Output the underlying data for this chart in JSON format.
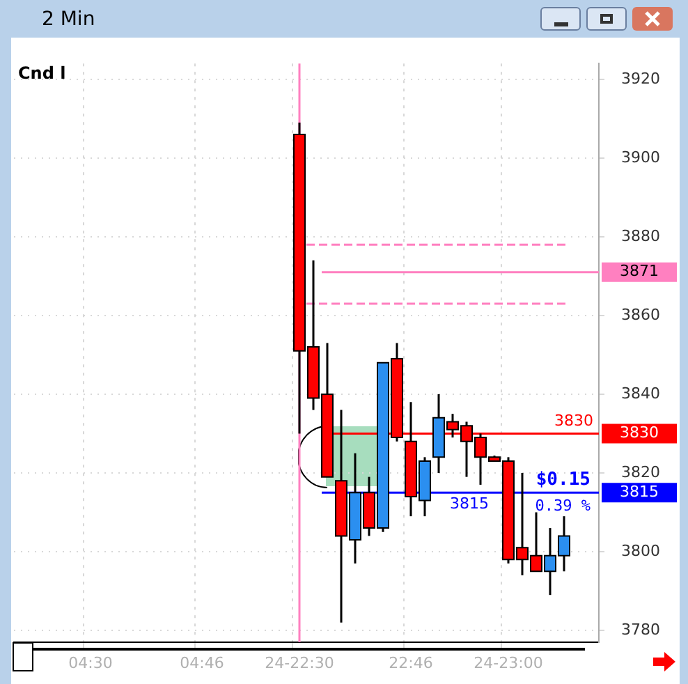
{
  "chart_data": {
    "type": "candlestick",
    "title": "2 Min",
    "categories": [
      null,
      null,
      null,
      null,
      null,
      "04:30",
      null,
      null,
      null,
      null,
      null,
      null,
      null,
      "04:46",
      null,
      null,
      null,
      null,
      null,
      null,
      "24-22:30",
      null,
      null,
      null,
      null,
      null,
      null,
      null,
      "22:46",
      null,
      null,
      null,
      null,
      null,
      null,
      "24-23:00",
      null,
      null,
      null,
      null,
      null,
      null
    ],
    "ohlc": [
      null,
      null,
      null,
      null,
      null,
      null,
      null,
      null,
      null,
      null,
      null,
      null,
      null,
      null,
      null,
      null,
      null,
      null,
      null,
      null,
      [
        3906,
        3909,
        3830,
        3851
      ],
      [
        3852,
        3874,
        3836,
        3839
      ],
      [
        3840,
        3853,
        3819,
        3819
      ],
      [
        3818,
        3836,
        3782,
        3804
      ],
      [
        3803,
        3825,
        3797,
        3815
      ],
      [
        3815,
        3819,
        3804,
        3806
      ],
      [
        3806,
        3848,
        3805,
        3848
      ],
      [
        3849,
        3853,
        3828,
        3829
      ],
      [
        3828,
        3838,
        3809,
        3814
      ],
      [
        3813,
        3824,
        3809,
        3823
      ],
      [
        3824,
        3840,
        3820,
        3834
      ],
      [
        3833,
        3835,
        3829,
        3831
      ],
      [
        3832,
        3833,
        3819,
        3828
      ],
      [
        3829,
        3830,
        3817,
        3824
      ],
      [
        3824,
        3824.4,
        3823,
        3823
      ],
      [
        3823,
        3824,
        3797,
        3798
      ],
      [
        3801,
        3820,
        3794,
        3798
      ],
      [
        3799,
        3810,
        3795,
        3795
      ],
      [
        3795,
        3806,
        3789,
        3799
      ],
      [
        3799,
        3809,
        3795,
        3804
      ],
      null,
      null
    ],
    "colors": [
      null,
      null,
      null,
      null,
      null,
      null,
      null,
      null,
      null,
      null,
      null,
      null,
      null,
      null,
      null,
      null,
      null,
      null,
      null,
      null,
      "#ff0000",
      "#ff0000",
      "#ff0000",
      "#ff0000",
      "#2b8ff0",
      "#ff0000",
      "#2b8ff0",
      "#ff0000",
      "#ff0000",
      "#2b8ff0",
      "#2b8ff0",
      "#ff0000",
      "#ff0000",
      "#ff0000",
      "#ff0000",
      "#ff0000",
      "#ff0000",
      "#ff0000",
      "#2b8ff0",
      "#2b8ff0",
      null,
      null
    ],
    "ylim": [
      3777,
      3924
    ],
    "yticks": [
      3780,
      3800,
      3820,
      3840,
      3860,
      3880,
      3900,
      3920
    ],
    "grid": true,
    "ref_lines": [
      {
        "axis": "x",
        "value": "24-22:30",
        "label": null,
        "color": "#ff80c0"
      },
      {
        "axis": "y",
        "value": 3878,
        "label": null,
        "color": "#ff80c0",
        "line_style": "dashed"
      },
      {
        "axis": "y",
        "value": 3871,
        "label": "3871",
        "color": "#ff80c0"
      },
      {
        "axis": "y",
        "value": 3863,
        "label": null,
        "color": "#ff80c0",
        "line_style": "dashed"
      },
      {
        "axis": "y",
        "value": 3830,
        "label": "3830",
        "color": "#ff0000"
      },
      {
        "axis": "y",
        "value": 3815,
        "label": "3815",
        "color": "#0000ff"
      }
    ],
    "annotations": [
      "Cnd l",
      "$0.15",
      "0.39 %"
    ]
  }
}
